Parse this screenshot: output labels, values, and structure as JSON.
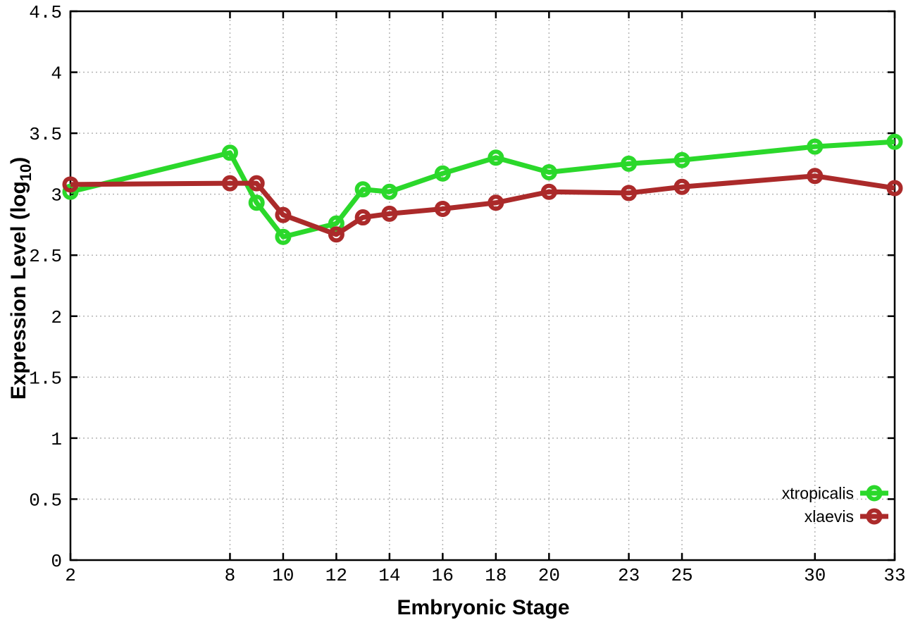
{
  "figure": {
    "background": "#ffffff",
    "axis_color": "#000000",
    "grid_color": "#b4b4b4"
  },
  "chart_data": {
    "type": "line",
    "x": [
      2,
      8,
      9,
      10,
      12,
      13,
      14,
      16,
      18,
      20,
      23,
      25,
      30,
      33
    ],
    "series": [
      {
        "name": "xtropicalis",
        "color": "#2bd82b",
        "values": [
          3.02,
          3.34,
          2.93,
          2.65,
          2.76,
          3.04,
          3.02,
          3.17,
          3.3,
          3.18,
          3.25,
          3.28,
          3.39,
          3.43
        ]
      },
      {
        "name": "xlaevis",
        "color": "#ab2a2a",
        "values": [
          3.08,
          3.09,
          3.09,
          2.83,
          2.67,
          2.81,
          2.84,
          2.88,
          2.93,
          3.02,
          3.01,
          3.06,
          3.15,
          3.05
        ]
      }
    ],
    "title": "",
    "xlabel": "Embryonic Stage",
    "ylabel_parts": {
      "main": "Expression Level (log",
      "sub": "10",
      "end": ")"
    },
    "xticks": [
      2,
      8,
      10,
      12,
      14,
      16,
      18,
      20,
      23,
      25,
      30,
      33
    ],
    "yticks": [
      0,
      0.5,
      1,
      1.5,
      2,
      2.5,
      3,
      3.5,
      4,
      4.5
    ],
    "xlim": [
      2,
      33
    ],
    "ylim": [
      0,
      4.5
    ],
    "grid": true,
    "legend_position": "bottom-right"
  }
}
